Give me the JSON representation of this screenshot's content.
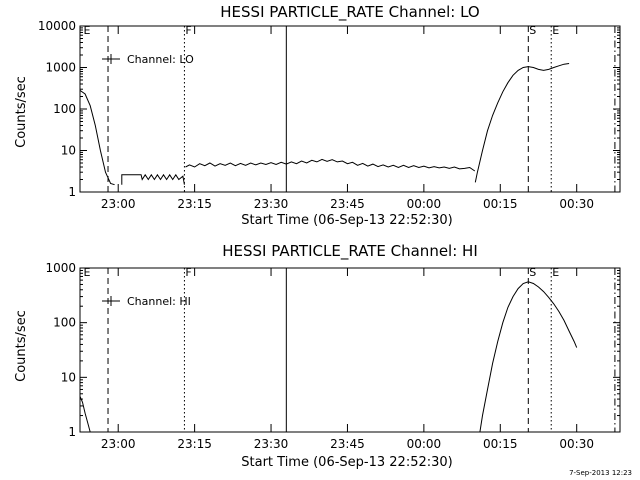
{
  "footer": {
    "timestamp": "7-Sep-2013 12:23"
  },
  "chart_data": [
    {
      "type": "line",
      "title": "HESSI PARTICLE_RATE Channel: LO",
      "xlabel": "Start Time (06-Sep-13 22:52:30)",
      "ylabel": "Counts/sec",
      "yscale": "log",
      "ylim": [
        1,
        10000
      ],
      "xlim_minutes": [
        0,
        106
      ],
      "x_ticks": [
        {
          "t": 7.5,
          "label": "23:00"
        },
        {
          "t": 22.5,
          "label": "23:15"
        },
        {
          "t": 37.5,
          "label": "23:30"
        },
        {
          "t": 52.5,
          "label": "23:45"
        },
        {
          "t": 67.5,
          "label": "00:00"
        },
        {
          "t": 82.5,
          "label": "00:15"
        },
        {
          "t": 97.5,
          "label": "00:30"
        }
      ],
      "y_ticks": [
        {
          "v": 1,
          "label": "1"
        },
        {
          "v": 10,
          "label": "10"
        },
        {
          "v": 100,
          "label": "100"
        },
        {
          "v": 1000,
          "label": "1000"
        },
        {
          "v": 10000,
          "label": "10000"
        }
      ],
      "legend": {
        "label": "Channel: LO",
        "placement": "top-left"
      },
      "markers": [
        {
          "t": 0.5,
          "label": "E",
          "style": "none"
        },
        {
          "t": 5.5,
          "label": "",
          "style": "dashed"
        },
        {
          "t": 20.5,
          "label": "F",
          "style": "dotted"
        },
        {
          "t": 40.5,
          "label": "",
          "style": "solid"
        },
        {
          "t": 88.0,
          "label": "S",
          "style": "dashed"
        },
        {
          "t": 92.5,
          "label": "E",
          "style": "dotted"
        },
        {
          "t": 105.0,
          "label": "",
          "style": "dashdot"
        }
      ],
      "series": [
        {
          "segments": [
            [
              [
                0,
                280
              ],
              [
                1,
                230
              ],
              [
                2,
                120
              ],
              [
                3,
                40
              ],
              [
                4,
                10
              ],
              [
                5,
                3
              ],
              [
                6,
                1.6
              ],
              [
                6.8,
                1.5
              ]
            ],
            [
              [
                8.2,
                1.5
              ],
              [
                8.2,
                2.6
              ],
              [
                12,
                2.6
              ],
              [
                12.2,
                2.0
              ],
              [
                12.8,
                2.6
              ],
              [
                13.4,
                2.0
              ],
              [
                14,
                2.6
              ],
              [
                14.6,
                2.0
              ],
              [
                15.2,
                2.6
              ],
              [
                15.8,
                2.0
              ],
              [
                16.4,
                2.6
              ],
              [
                17,
                2.0
              ],
              [
                17.6,
                2.6
              ],
              [
                18.2,
                2.0
              ],
              [
                18.8,
                2.6
              ],
              [
                19.4,
                2.0
              ],
              [
                20.2,
                2.4
              ],
              [
                20.5,
                1.5
              ]
            ],
            [
              [
                20.7,
                4.0
              ],
              [
                21.5,
                4.5
              ],
              [
                22.5,
                4.0
              ],
              [
                23.5,
                4.8
              ],
              [
                24.5,
                4.3
              ],
              [
                25.5,
                5.0
              ],
              [
                26.5,
                4.2
              ],
              [
                27.5,
                4.8
              ],
              [
                28.5,
                4.4
              ],
              [
                29.5,
                5.0
              ],
              [
                30.5,
                4.3
              ],
              [
                31.5,
                4.9
              ],
              [
                32.5,
                4.4
              ],
              [
                33.5,
                5.0
              ],
              [
                34.5,
                4.5
              ],
              [
                35.5,
                5.0
              ],
              [
                36.5,
                4.6
              ],
              [
                37.5,
                5.1
              ],
              [
                38.5,
                4.6
              ],
              [
                39.5,
                5.2
              ],
              [
                40.5,
                4.7
              ],
              [
                41.5,
                5.3
              ],
              [
                42.5,
                4.8
              ],
              [
                43.5,
                5.6
              ],
              [
                44.5,
                5.0
              ],
              [
                45.5,
                5.8
              ],
              [
                46.5,
                5.3
              ],
              [
                47.5,
                6.1
              ],
              [
                48.5,
                5.5
              ],
              [
                49.5,
                6.0
              ],
              [
                50.5,
                5.3
              ],
              [
                51.5,
                5.6
              ],
              [
                52.5,
                4.8
              ],
              [
                53.5,
                5.2
              ],
              [
                54.5,
                4.4
              ],
              [
                55.5,
                4.9
              ],
              [
                56.5,
                4.2
              ],
              [
                57.5,
                4.7
              ],
              [
                58.5,
                4.1
              ],
              [
                59.5,
                4.5
              ],
              [
                60.5,
                4.0
              ],
              [
                61.5,
                4.4
              ],
              [
                62.5,
                3.9
              ],
              [
                63.5,
                4.4
              ],
              [
                64.5,
                3.9
              ],
              [
                65.5,
                4.3
              ],
              [
                66.5,
                3.9
              ],
              [
                67.5,
                4.2
              ],
              [
                68.5,
                3.8
              ],
              [
                69.5,
                4.1
              ],
              [
                70.5,
                3.8
              ],
              [
                71.5,
                4.0
              ],
              [
                72.5,
                3.7
              ],
              [
                73.5,
                4.0
              ],
              [
                74.5,
                3.6
              ],
              [
                75.5,
                3.7
              ],
              [
                76.5,
                3.9
              ],
              [
                77.5,
                3.2
              ]
            ],
            [
              [
                77.6,
                1.7
              ],
              [
                78,
                3
              ],
              [
                79,
                10
              ],
              [
                80,
                30
              ],
              [
                81,
                70
              ],
              [
                82,
                140
              ],
              [
                83,
                260
              ],
              [
                84,
                430
              ],
              [
                85,
                650
              ],
              [
                86,
                850
              ],
              [
                87,
                1000
              ],
              [
                88,
                1050
              ],
              [
                89,
                1000
              ],
              [
                90,
                900
              ],
              [
                91,
                850
              ],
              [
                92,
                900
              ],
              [
                93,
                1000
              ],
              [
                94,
                1100
              ],
              [
                95,
                1200
              ],
              [
                96,
                1250
              ]
            ]
          ]
        }
      ]
    },
    {
      "type": "line",
      "title": "HESSI PARTICLE_RATE Channel: HI",
      "xlabel": "Start Time (06-Sep-13 22:52:30)",
      "ylabel": "Counts/sec",
      "yscale": "log",
      "ylim": [
        1,
        1000
      ],
      "xlim_minutes": [
        0,
        106
      ],
      "x_ticks": [
        {
          "t": 7.5,
          "label": "23:00"
        },
        {
          "t": 22.5,
          "label": "23:15"
        },
        {
          "t": 37.5,
          "label": "23:30"
        },
        {
          "t": 52.5,
          "label": "23:45"
        },
        {
          "t": 67.5,
          "label": "00:00"
        },
        {
          "t": 82.5,
          "label": "00:15"
        },
        {
          "t": 97.5,
          "label": "00:30"
        }
      ],
      "y_ticks": [
        {
          "v": 1,
          "label": "1"
        },
        {
          "v": 10,
          "label": "10"
        },
        {
          "v": 100,
          "label": "100"
        },
        {
          "v": 1000,
          "label": "1000"
        }
      ],
      "legend": {
        "label": "Channel: HI",
        "placement": "top-left"
      },
      "markers": [
        {
          "t": 0.5,
          "label": "E",
          "style": "none"
        },
        {
          "t": 5.5,
          "label": "",
          "style": "dashed"
        },
        {
          "t": 20.5,
          "label": "F",
          "style": "dotted"
        },
        {
          "t": 40.5,
          "label": "",
          "style": "solid"
        },
        {
          "t": 88.0,
          "label": "S",
          "style": "dashed"
        },
        {
          "t": 92.5,
          "label": "E",
          "style": "dotted"
        },
        {
          "t": 105.0,
          "label": "",
          "style": "dashdot"
        }
      ],
      "series": [
        {
          "segments": [
            [
              [
                0,
                4.5
              ],
              [
                0.5,
                3.5
              ],
              [
                1,
                2.2
              ],
              [
                1.5,
                1.5
              ],
              [
                2,
                1.0
              ]
            ],
            [
              [
                78.5,
                1.0
              ],
              [
                79,
                2
              ],
              [
                80,
                6
              ],
              [
                81,
                18
              ],
              [
                82,
                45
              ],
              [
                83,
                100
              ],
              [
                84,
                190
              ],
              [
                85,
                300
              ],
              [
                86,
                420
              ],
              [
                87,
                520
              ],
              [
                88,
                560
              ],
              [
                89,
                520
              ],
              [
                90,
                450
              ],
              [
                91,
                370
              ],
              [
                92,
                290
              ],
              [
                93,
                220
              ],
              [
                94,
                160
              ],
              [
                95,
                110
              ],
              [
                96,
                70
              ],
              [
                97,
                45
              ],
              [
                97.5,
                35
              ]
            ]
          ]
        }
      ]
    }
  ]
}
